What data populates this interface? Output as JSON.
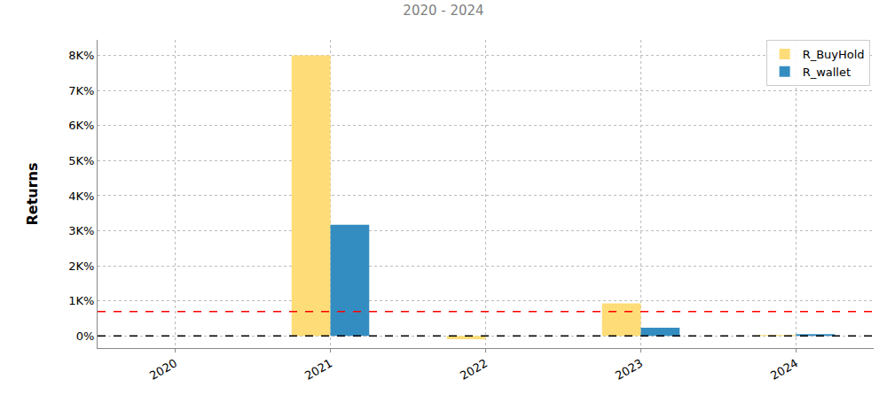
{
  "chart_data": {
    "type": "bar",
    "title": "2020 - 2024",
    "y_label": "Returns",
    "categories": [
      "2020",
      "2021",
      "2022",
      "2023",
      "2024"
    ],
    "series": [
      {
        "name": "R_BuyHold",
        "color": "#fedd78",
        "values": [
          0,
          8010,
          -100,
          930,
          20
        ]
      },
      {
        "name": "R_wallet",
        "color": "#348dc1",
        "values": [
          0,
          3170,
          0,
          230,
          50
        ]
      }
    ],
    "ylim": [
      -350,
      8450
    ],
    "yticks": [
      {
        "value": 0,
        "label": "0%"
      },
      {
        "value": 1000,
        "label": "1K%"
      },
      {
        "value": 2000,
        "label": "2K%"
      },
      {
        "value": 3000,
        "label": "3K%"
      },
      {
        "value": 4000,
        "label": "4K%"
      },
      {
        "value": 5000,
        "label": "5K%"
      },
      {
        "value": 6000,
        "label": "6K%"
      },
      {
        "value": 7000,
        "label": "7K%"
      },
      {
        "value": 8000,
        "label": "8K%"
      }
    ],
    "reference_lines": [
      {
        "value": 690,
        "color": "#ff0000"
      },
      {
        "value": 0,
        "color": "#000000"
      }
    ],
    "grid": true,
    "legend": "upper right"
  }
}
